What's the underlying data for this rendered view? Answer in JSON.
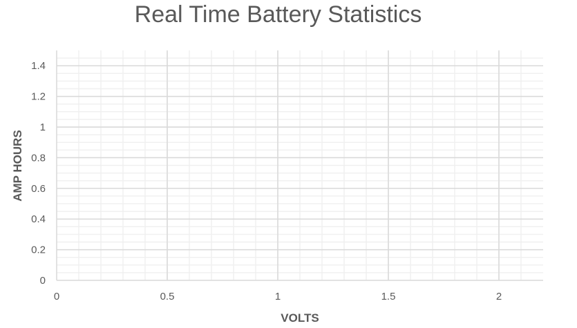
{
  "chart_data": {
    "type": "scatter",
    "title": "Real Time Battery Statistics",
    "xlabel": "VOLTS",
    "ylabel": "AMP HOURS",
    "xlim": [
      0,
      2.2
    ],
    "ylim": [
      0,
      1.5
    ],
    "x_ticks": [
      0,
      0.5,
      1,
      1.5,
      2
    ],
    "y_ticks": [
      0,
      0.2,
      0.4,
      0.6,
      0.8,
      1,
      1.2,
      1.4
    ],
    "x_minor_step": 0.1,
    "y_minor_step": 0.05,
    "series": [],
    "grid": true,
    "legend": "none"
  }
}
